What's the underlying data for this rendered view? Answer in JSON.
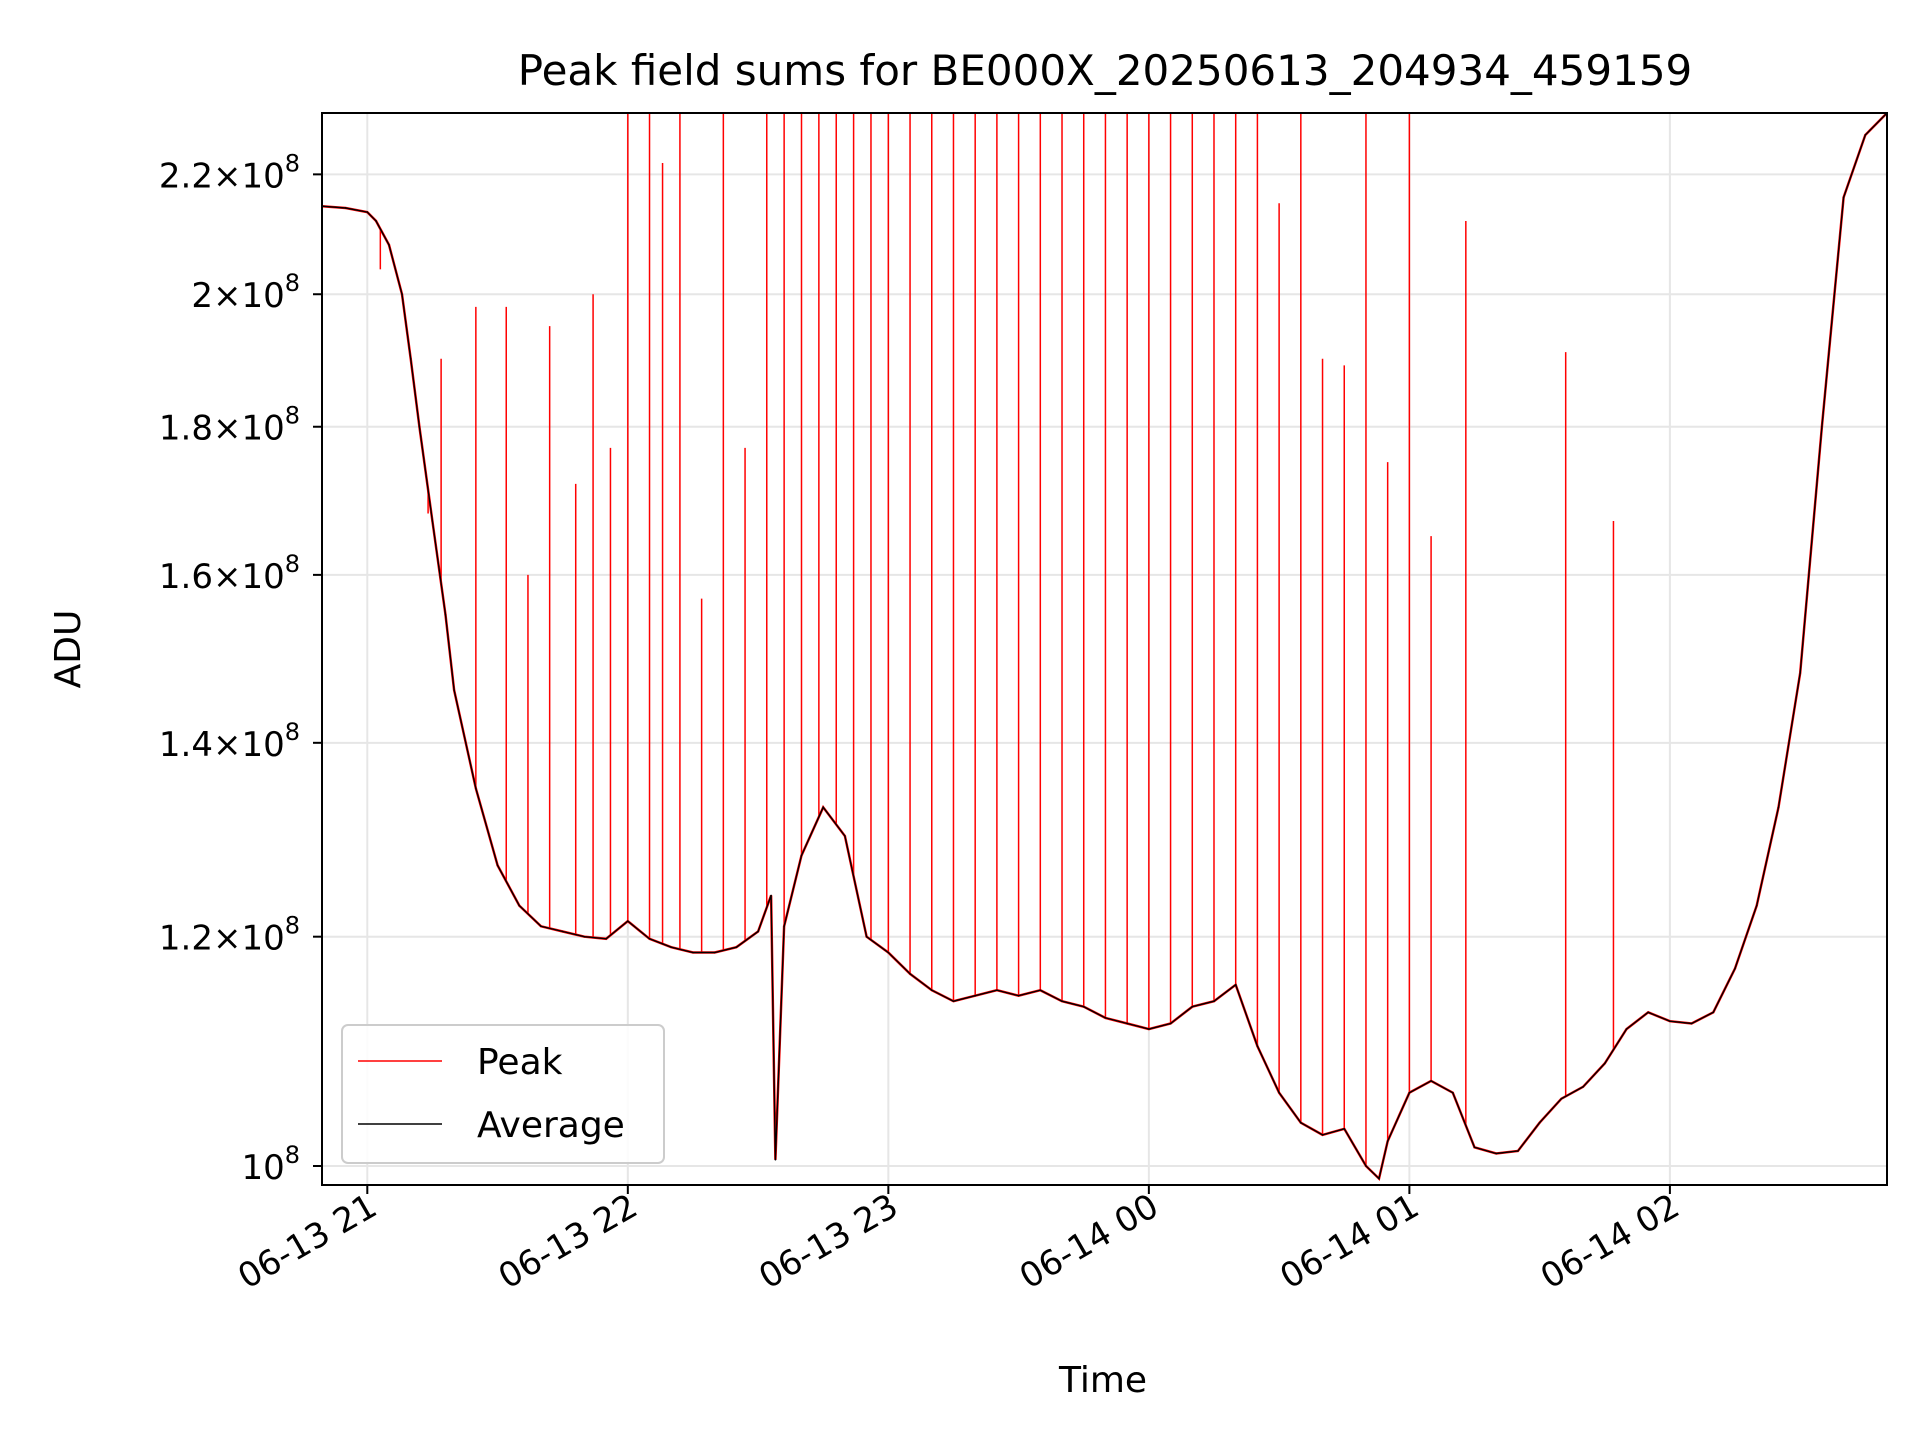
{
  "chart_data": {
    "type": "line",
    "title": "Peak field sums for BE000X_20250613_204934_459159",
    "xlabel": "Time",
    "ylabel": "ADU",
    "x_type": "datetime",
    "xlim": [
      "2025-06-13T20:49:34",
      "2025-06-14T02:50:00"
    ],
    "ylim": [
      98500000,
      231000000
    ],
    "y_scale": "log",
    "grid": true,
    "legend_position": "lower left",
    "x_ticks": [
      {
        "value": "2025-06-13T21:00",
        "label": "06-13 21"
      },
      {
        "value": "2025-06-13T22:00",
        "label": "06-13 22"
      },
      {
        "value": "2025-06-13T23:00",
        "label": "06-13 23"
      },
      {
        "value": "2025-06-14T00:00",
        "label": "06-14 00"
      },
      {
        "value": "2025-06-14T01:00",
        "label": "06-14 01"
      },
      {
        "value": "2025-06-14T02:00",
        "label": "06-14 02"
      }
    ],
    "y_ticks": [
      {
        "value": 100000000,
        "mantissa": "",
        "exponent": "8"
      },
      {
        "value": 120000000,
        "mantissa": "1.2",
        "exponent": "8"
      },
      {
        "value": 140000000,
        "mantissa": "1.4",
        "exponent": "8"
      },
      {
        "value": 160000000,
        "mantissa": "1.6",
        "exponent": "8"
      },
      {
        "value": 180000000,
        "mantissa": "1.8",
        "exponent": "8"
      },
      {
        "value": 200000000,
        "mantissa": "2",
        "exponent": "8"
      },
      {
        "value": 220000000,
        "mantissa": "2.2",
        "exponent": "8"
      }
    ],
    "series": [
      {
        "name": "Average",
        "color": "#000000",
        "x": [
          "2025-06-13T20:49:34",
          "2025-06-13T20:55",
          "2025-06-13T21:00",
          "2025-06-13T21:02",
          "2025-06-13T21:05",
          "2025-06-13T21:08",
          "2025-06-13T21:10",
          "2025-06-13T21:12",
          "2025-06-13T21:15",
          "2025-06-13T21:18",
          "2025-06-13T21:20",
          "2025-06-13T21:25",
          "2025-06-13T21:30",
          "2025-06-13T21:35",
          "2025-06-13T21:40",
          "2025-06-13T21:45",
          "2025-06-13T21:50",
          "2025-06-13T21:55",
          "2025-06-13T22:00",
          "2025-06-13T22:05",
          "2025-06-13T22:10",
          "2025-06-13T22:15",
          "2025-06-13T22:20",
          "2025-06-13T22:25",
          "2025-06-13T22:30",
          "2025-06-13T22:33",
          "2025-06-13T22:34",
          "2025-06-13T22:36",
          "2025-06-13T22:40",
          "2025-06-13T22:45",
          "2025-06-13T22:50",
          "2025-06-13T22:55",
          "2025-06-13T23:00",
          "2025-06-13T23:05",
          "2025-06-13T23:10",
          "2025-06-13T23:15",
          "2025-06-13T23:20",
          "2025-06-13T23:25",
          "2025-06-13T23:30",
          "2025-06-13T23:35",
          "2025-06-13T23:40",
          "2025-06-13T23:45",
          "2025-06-13T23:50",
          "2025-06-13T23:55",
          "2025-06-14T00:00",
          "2025-06-14T00:05",
          "2025-06-14T00:10",
          "2025-06-14T00:15",
          "2025-06-14T00:20",
          "2025-06-14T00:25",
          "2025-06-14T00:30",
          "2025-06-14T00:35",
          "2025-06-14T00:40",
          "2025-06-14T00:45",
          "2025-06-14T00:50",
          "2025-06-14T00:53",
          "2025-06-14T00:55",
          "2025-06-14T01:00",
          "2025-06-14T01:05",
          "2025-06-14T01:10",
          "2025-06-14T01:15",
          "2025-06-14T01:20",
          "2025-06-14T01:25",
          "2025-06-14T01:30",
          "2025-06-14T01:35",
          "2025-06-14T01:40",
          "2025-06-14T01:45",
          "2025-06-14T01:50",
          "2025-06-14T01:55",
          "2025-06-14T02:00",
          "2025-06-14T02:05",
          "2025-06-14T02:10",
          "2025-06-14T02:15",
          "2025-06-14T02:20",
          "2025-06-14T02:25",
          "2025-06-14T02:30",
          "2025-06-14T02:35",
          "2025-06-14T02:40",
          "2025-06-14T02:45",
          "2025-06-14T02:50"
        ],
        "values": [
          214500000,
          214200000,
          213500000,
          212000000,
          208000000,
          200000000,
          190000000,
          180000000,
          167000000,
          155000000,
          146000000,
          135000000,
          127000000,
          123000000,
          121000000,
          120500000,
          120000000,
          119800000,
          121500000,
          119800000,
          119000000,
          118500000,
          118500000,
          119000000,
          120500000,
          124000000,
          100500000,
          121000000,
          128000000,
          133000000,
          130000000,
          120000000,
          118500000,
          116500000,
          115000000,
          114000000,
          114500000,
          115000000,
          114500000,
          115000000,
          114000000,
          113500000,
          112500000,
          112000000,
          111500000,
          112000000,
          113500000,
          114000000,
          115500000,
          110000000,
          106000000,
          103500000,
          102500000,
          103000000,
          100000000,
          99000000,
          102000000,
          106000000,
          107000000,
          106000000,
          101500000,
          101000000,
          101200000,
          103500000,
          105500000,
          106500000,
          108500000,
          111500000,
          113000000,
          112200000,
          112000000,
          113000000,
          117000000,
          123000000,
          133000000,
          148000000,
          180000000,
          216000000,
          227000000,
          231000000
        ]
      },
      {
        "name": "Peak",
        "color": "#ff0000",
        "x": [
          "2025-06-13T21:03",
          "2025-06-13T21:14",
          "2025-06-13T21:17",
          "2025-06-13T21:25",
          "2025-06-13T21:32",
          "2025-06-13T21:37",
          "2025-06-13T21:42",
          "2025-06-13T21:48",
          "2025-06-13T21:52",
          "2025-06-13T21:56",
          "2025-06-13T22:00",
          "2025-06-13T22:05",
          "2025-06-13T22:08",
          "2025-06-13T22:12",
          "2025-06-13T22:17",
          "2025-06-13T22:22",
          "2025-06-13T22:27",
          "2025-06-13T22:32",
          "2025-06-13T22:36",
          "2025-06-13T22:40",
          "2025-06-13T22:44",
          "2025-06-13T22:48",
          "2025-06-13T22:52",
          "2025-06-13T22:56",
          "2025-06-13T23:00",
          "2025-06-13T23:05",
          "2025-06-13T23:10",
          "2025-06-13T23:15",
          "2025-06-13T23:20",
          "2025-06-13T23:25",
          "2025-06-13T23:30",
          "2025-06-13T23:35",
          "2025-06-13T23:40",
          "2025-06-13T23:45",
          "2025-06-13T23:50",
          "2025-06-13T23:55",
          "2025-06-14T00:00",
          "2025-06-14T00:05",
          "2025-06-14T00:10",
          "2025-06-14T00:15",
          "2025-06-14T00:20",
          "2025-06-14T00:25",
          "2025-06-14T00:30",
          "2025-06-14T00:35",
          "2025-06-14T00:40",
          "2025-06-14T00:45",
          "2025-06-14T00:50",
          "2025-06-14T00:55",
          "2025-06-14T01:00",
          "2025-06-14T01:05",
          "2025-06-14T01:13",
          "2025-06-14T01:36",
          "2025-06-14T01:47"
        ],
        "values": [
          204000000,
          168000000,
          190000000,
          198000000,
          198000000,
          160000000,
          195000000,
          172000000,
          200000000,
          177000000,
          231000000,
          231000000,
          222000000,
          231000000,
          157000000,
          231000000,
          177000000,
          231000000,
          231000000,
          231000000,
          231000000,
          231000000,
          231000000,
          231000000,
          231000000,
          231000000,
          231000000,
          231000000,
          231000000,
          231000000,
          231000000,
          231000000,
          231000000,
          231000000,
          231000000,
          231000000,
          231000000,
          231000000,
          231000000,
          231000000,
          231000000,
          231000000,
          215000000,
          231000000,
          190000000,
          189000000,
          231000000,
          175000000,
          231000000,
          165000000,
          212000000,
          191000000,
          167000000
        ]
      }
    ]
  }
}
